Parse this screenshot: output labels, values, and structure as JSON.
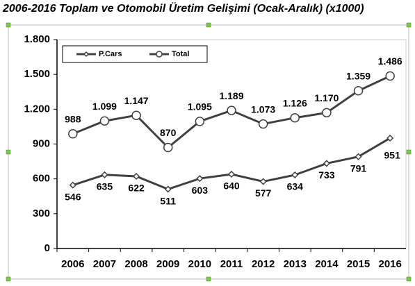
{
  "chart_data": {
    "type": "line",
    "title": "2006-2016 Toplam ve Otomobil Üretim Gelişimi (Ocak-Aralık) (x1000)",
    "categories": [
      "2006",
      "2007",
      "2008",
      "2009",
      "2010",
      "2011",
      "2012",
      "2013",
      "2014",
      "2015",
      "2016"
    ],
    "series": [
      {
        "name": "P.Cars",
        "color": "#404040",
        "marker": "diamond",
        "values": [
          546,
          635,
          622,
          511,
          603,
          640,
          577,
          634,
          733,
          791,
          951
        ]
      },
      {
        "name": "Total",
        "color": "#404040",
        "marker": "circle",
        "values": [
          988,
          1099,
          1147,
          870,
          1095,
          1189,
          1073,
          1126,
          1170,
          1359,
          1486
        ],
        "value_labels": [
          "988",
          "1.099",
          "1.147",
          "870",
          "1.095",
          "1.189",
          "1.073",
          "1.126",
          "1.170",
          "1.359",
          "1.486"
        ]
      }
    ],
    "ylim": [
      0,
      1800
    ],
    "yticks": [
      0,
      300,
      600,
      900,
      {
        "value": 1200,
        "label": "1.200"
      },
      {
        "value": 1500,
        "label": "1.500"
      },
      {
        "value": 1800,
        "label": "1.800"
      }
    ],
    "grid": false,
    "legend": "top-left"
  }
}
